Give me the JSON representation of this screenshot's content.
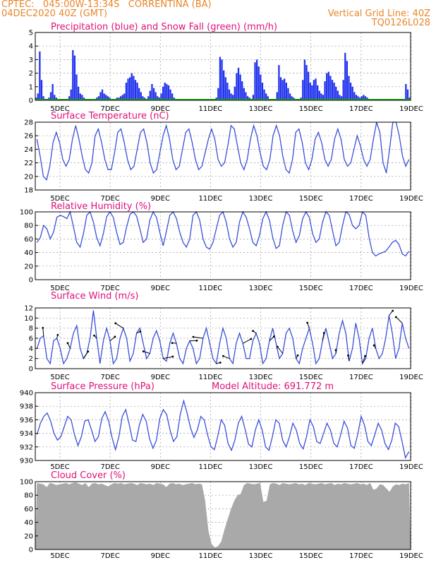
{
  "header": {
    "line1_left": "CPTEC:   045:00W-13:34S   CORRENTINA (BA)",
    "line2_left": "04DEC2020 40Z (GMT)",
    "line2_right": "Vertical Grid Line: 40Z",
    "line3_right": "TQ0126L028"
  },
  "colors": {
    "header": "#e8862a",
    "title": "#e0107a",
    "line": "#3a4fd8",
    "precip": "#2233ee",
    "snow": "#22aa22",
    "cloud": "#a9a9a9"
  },
  "x_ticks": [
    "5DEC",
    "7DEC",
    "9DEC",
    "11DEC",
    "13DEC",
    "15DEC",
    "17DEC",
    "19DEC"
  ],
  "chart_data": [
    {
      "type": "bar",
      "title": "Precipitation (blue) and Snow Fall (green) (mm/h)",
      "ylim": [
        0,
        5
      ],
      "yticks": [
        0,
        1,
        2,
        3,
        4,
        5
      ],
      "series": [
        {
          "name": "Precipitation",
          "values": [
            0.2,
            0.5,
            3.6,
            1.5,
            0.3,
            0.1,
            0.1,
            0.2,
            0.6,
            1.2,
            0.4,
            0.2,
            0.1,
            0.1,
            0,
            0,
            0,
            0.1,
            0.3,
            0.8,
            3.7,
            3.3,
            1.9,
            1.0,
            0.5,
            0.4,
            0.2,
            0.1,
            0,
            0,
            0,
            0,
            0.1,
            0.2,
            0.3,
            0.6,
            0.8,
            0.5,
            0.4,
            0.3,
            0.2,
            0.1,
            0.1,
            0.1,
            0.2,
            0.2,
            0.3,
            0.4,
            0.5,
            1.3,
            1.6,
            1.7,
            2.0,
            1.8,
            1.5,
            1.3,
            0.9,
            0.6,
            0.3,
            0.2,
            0.1,
            0.3,
            0.7,
            1.2,
            0.9,
            0.6,
            0.3,
            0.2,
            0.5,
            1.0,
            1.3,
            1.2,
            1.1,
            0.8,
            0.5,
            0.2,
            0.1,
            0.1,
            0,
            0,
            0,
            0,
            0,
            0,
            0,
            0,
            0,
            0,
            0,
            0,
            0,
            0,
            0,
            0,
            0,
            0,
            0,
            0,
            0.2,
            0.9,
            3.2,
            3.0,
            2.2,
            1.7,
            1.3,
            0.8,
            0.5,
            0.4,
            1.0,
            2.0,
            2.4,
            1.9,
            1.4,
            0.9,
            0.6,
            0.3,
            0.2,
            0.1,
            0.4,
            2.8,
            3.0,
            2.5,
            1.9,
            1.3,
            0.8,
            0.5,
            0.3,
            0.1,
            0,
            0,
            0,
            0.6,
            2.6,
            1.7,
            1.5,
            1.6,
            1.3,
            0.9,
            0.5,
            0.3,
            0.2,
            0.1,
            0,
            0,
            0.2,
            1.5,
            3.0,
            2.6,
            2.1,
            1.3,
            1.1,
            1.5,
            1.6,
            1.1,
            0.7,
            0.5,
            0.4,
            1.4,
            2.0,
            2.1,
            1.8,
            1.5,
            1.3,
            1.0,
            0.7,
            0.4,
            0.3,
            1.5,
            3.5,
            2.9,
            1.8,
            1.3,
            1.0,
            0.6,
            0.4,
            0.3,
            0.2,
            0.3,
            0.4,
            0.3,
            0.2,
            0.1,
            0,
            0,
            0,
            0,
            0,
            0,
            0,
            0,
            0,
            0,
            0,
            0,
            0,
            0,
            0,
            0,
            0,
            0,
            0,
            1.2,
            0.8,
            0.2
          ]
        },
        {
          "name": "Snow Fall",
          "values": [
            0.05
          ]
        }
      ]
    },
    {
      "type": "line",
      "title": "Surface Temperature (nC)",
      "ylim": [
        18,
        28
      ],
      "yticks": [
        18,
        20,
        22,
        24,
        26,
        28
      ],
      "series": [
        {
          "name": "Temperature",
          "values": [
            25.5,
            23,
            20,
            19.5,
            21.5,
            25,
            26.5,
            25,
            22.5,
            21.5,
            22.5,
            25.5,
            27.5,
            25.5,
            23,
            21,
            20.5,
            22,
            26,
            27,
            25,
            22.5,
            21,
            21,
            23.5,
            26.5,
            27,
            25,
            22.5,
            21,
            21.5,
            24,
            26.5,
            27,
            25,
            22,
            20.5,
            21,
            23.5,
            26,
            27.5,
            25.5,
            22.5,
            21,
            21.5,
            24,
            26.5,
            27,
            25,
            22.5,
            21,
            21.5,
            23.5,
            25.5,
            27,
            25.5,
            22.5,
            21.5,
            22,
            24.5,
            27.5,
            27,
            24.5,
            22,
            21,
            22.5,
            25.5,
            27.5,
            26,
            23.5,
            21.5,
            21,
            22.5,
            26,
            27.5,
            26,
            23,
            21,
            20.5,
            22.5,
            26.5,
            27,
            25,
            22,
            21,
            22.5,
            25.5,
            26.5,
            25,
            22.5,
            21.5,
            22.5,
            25.5,
            27,
            25.5,
            22.5,
            21.5,
            22,
            24,
            26,
            24.5,
            22.5,
            21.5,
            22.5,
            25.5,
            28,
            26.5,
            22,
            20.5,
            24,
            28,
            28,
            26,
            23,
            21.5,
            22.5
          ]
        }
      ]
    },
    {
      "type": "line",
      "title": "Relative Humidity (%)",
      "ylim": [
        0,
        100
      ],
      "yticks": [
        0,
        20,
        40,
        60,
        80,
        100
      ],
      "series": [
        {
          "name": "Humidity",
          "values": [
            55,
            62,
            80,
            75,
            60,
            70,
            92,
            95,
            93,
            90,
            100,
            78,
            55,
            48,
            68,
            95,
            100,
            85,
            62,
            50,
            68,
            93,
            100,
            92,
            70,
            52,
            55,
            78,
            96,
            100,
            94,
            75,
            55,
            60,
            88,
            100,
            92,
            70,
            50,
            72,
            95,
            100,
            90,
            70,
            55,
            48,
            60,
            95,
            100,
            88,
            60,
            48,
            45,
            55,
            75,
            95,
            100,
            85,
            60,
            48,
            55,
            85,
            100,
            92,
            75,
            55,
            50,
            65,
            90,
            100,
            88,
            62,
            46,
            50,
            80,
            100,
            95,
            72,
            55,
            65,
            90,
            100,
            92,
            68,
            55,
            60,
            85,
            100,
            95,
            72,
            50,
            55,
            80,
            100,
            96,
            80,
            75,
            80,
            100,
            95,
            62,
            40,
            35,
            38,
            40,
            42,
            48,
            55,
            58,
            52,
            38,
            35,
            42
          ]
        }
      ]
    },
    {
      "type": "line",
      "title": "Surface Wind (m/s)",
      "ylim": [
        0,
        12
      ],
      "yticks": [
        0,
        2,
        4,
        6,
        8,
        10,
        12
      ],
      "series": [
        {
          "name": "Wind",
          "values": [
            4,
            6,
            6.5,
            2,
            1,
            5.5,
            6,
            4,
            1,
            2,
            4,
            7,
            8.5,
            4,
            2,
            3,
            6,
            11.5,
            6,
            1,
            5.5,
            8,
            5.5,
            1,
            2,
            6,
            8,
            6,
            1.5,
            3,
            7,
            8,
            5,
            2,
            3,
            6,
            7.5,
            5.5,
            2,
            1.5,
            5,
            7,
            5,
            2,
            1,
            4,
            5.5,
            4,
            1,
            2,
            6,
            8,
            5,
            2,
            1,
            5,
            8,
            6,
            2,
            1,
            5,
            7,
            5,
            2,
            2,
            5.5,
            7,
            5,
            1,
            2,
            5.5,
            8,
            5,
            2,
            3,
            7,
            8,
            6,
            2,
            1,
            4,
            6,
            8,
            5,
            1,
            2,
            5.5,
            8,
            5,
            2,
            3,
            7,
            9.5,
            7,
            1.5,
            4,
            9,
            6,
            1,
            2,
            6,
            8,
            4,
            2,
            3,
            6,
            10.5,
            7,
            2,
            4,
            9,
            6,
            4
          ]
        }
      ]
    },
    {
      "type": "line",
      "title": "Surface Pressure (hPa)",
      "subtitle": "Model Altitude: 691.772 m",
      "ylim": [
        930,
        940
      ],
      "yticks": [
        930,
        932,
        934,
        936,
        938,
        940
      ],
      "series": [
        {
          "name": "Pressure",
          "values": [
            933.8,
            935.5,
            936.5,
            937,
            935.8,
            934,
            933,
            933.5,
            935,
            936.5,
            936,
            933.8,
            932.2,
            933.5,
            935.8,
            936,
            934.5,
            932.8,
            933.5,
            936.2,
            937.2,
            935.8,
            933.4,
            931.6,
            933.5,
            936.5,
            937.5,
            935.4,
            933,
            932.8,
            935.2,
            936.8,
            935.8,
            933.2,
            931.8,
            933,
            936.2,
            937.5,
            936.8,
            934.5,
            932.8,
            933.5,
            936.8,
            938.8,
            937,
            934.8,
            933.4,
            934.5,
            936.5,
            936,
            933.8,
            932,
            931.6,
            933.6,
            936,
            935.2,
            932.5,
            931.5,
            933,
            935.5,
            936.5,
            934.6,
            932.4,
            932,
            934.5,
            936,
            934.5,
            932,
            931.5,
            933.5,
            936,
            935.5,
            933,
            932,
            933.5,
            935.5,
            934.5,
            932.5,
            931.7,
            933.5,
            936,
            935,
            932.8,
            932.5,
            934,
            935.5,
            934.5,
            932.5,
            932,
            933.8,
            935.8,
            934.8,
            932.2,
            931.8,
            933.8,
            936.5,
            935.2,
            932.8,
            932.2,
            933.8,
            935.5,
            934.5,
            932.5,
            931.6,
            933,
            935.5,
            935,
            932.8,
            930.4,
            931.3
          ]
        }
      ]
    },
    {
      "type": "area",
      "title": "Cloud Cover (%)",
      "ylim": [
        0,
        100
      ],
      "yticks": [
        0,
        20,
        40,
        60,
        80,
        100
      ],
      "series": [
        {
          "name": "Cloud Cover",
          "values": [
            98,
            97,
            96,
            92,
            98,
            97,
            95,
            96,
            97,
            98,
            96,
            98,
            99,
            97,
            95,
            98,
            92,
            97,
            98,
            96,
            97,
            95,
            93,
            96,
            98,
            97,
            98,
            96,
            97,
            98,
            97,
            95,
            98,
            97,
            96,
            97,
            95,
            98,
            97,
            96,
            92,
            97,
            98,
            96,
            97,
            95,
            96,
            97,
            98,
            96,
            97,
            96,
            72,
            28,
            8,
            3,
            5,
            12,
            30,
            45,
            60,
            72,
            80,
            82,
            95,
            98,
            97,
            96,
            97,
            98,
            70,
            72,
            96,
            98,
            97,
            95,
            98,
            97,
            96,
            97,
            98,
            96,
            97,
            95,
            98,
            97,
            96,
            97,
            98,
            96,
            97,
            98,
            95,
            97,
            96,
            98,
            97,
            96,
            97,
            98,
            96,
            97,
            95,
            98,
            88,
            90,
            96,
            95,
            90,
            85,
            93,
            96,
            95,
            97,
            96,
            98
          ]
        }
      ]
    }
  ]
}
